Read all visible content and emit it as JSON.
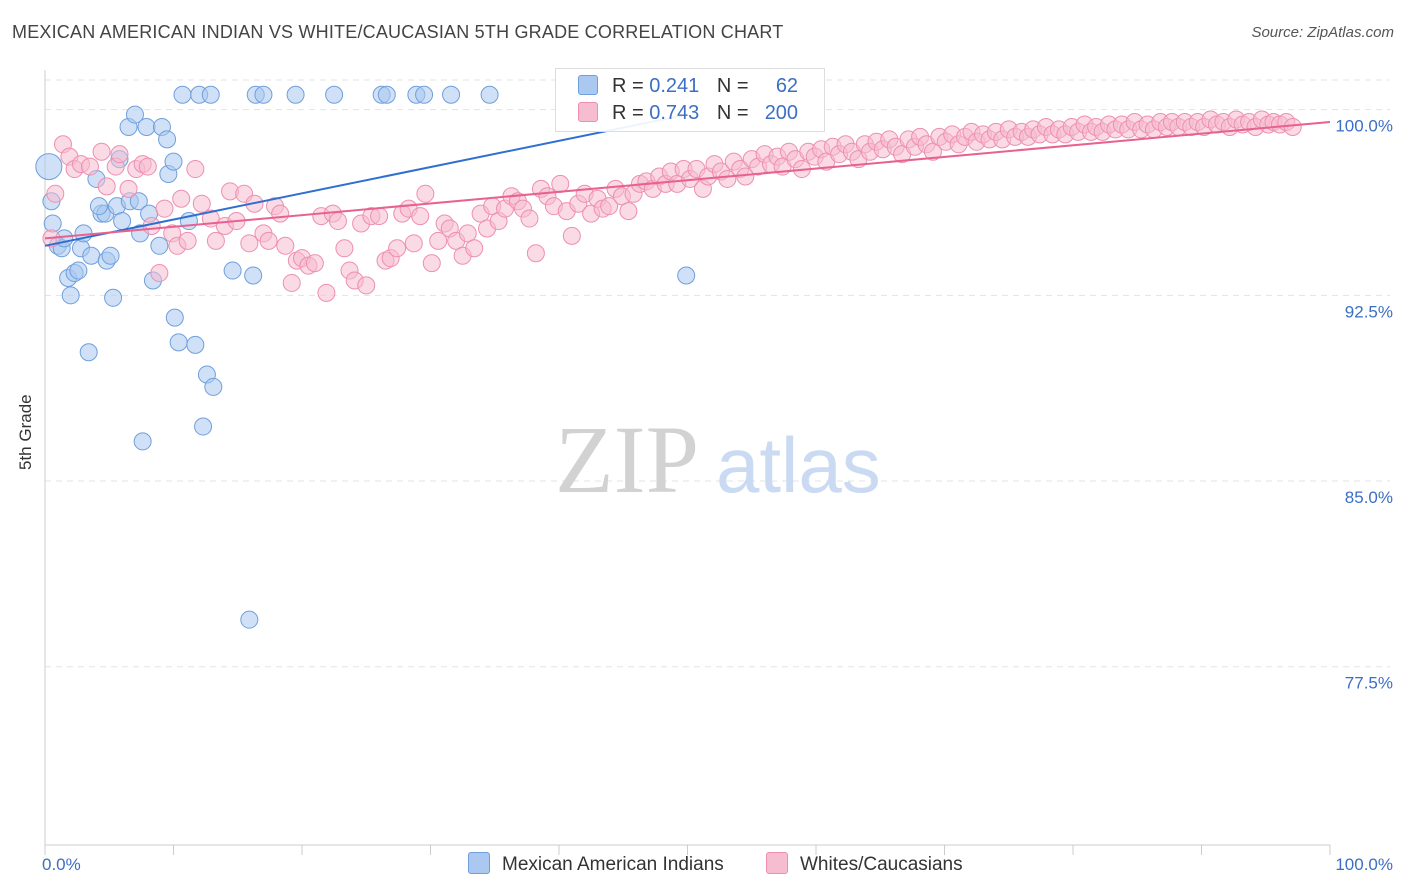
{
  "header": {
    "title": "MEXICAN AMERICAN INDIAN VS WHITE/CAUCASIAN 5TH GRADE CORRELATION CHART",
    "source": "Source: ZipAtlas.com"
  },
  "watermark": {
    "zip": "ZIP",
    "atlas": "atlas"
  },
  "colors": {
    "blue_fill": "#aac8f0",
    "blue_stroke": "#6f9fdc",
    "blue_line": "#2f6fd0",
    "pink_fill": "#f6bcd0",
    "pink_stroke": "#ee8fb0",
    "pink_line": "#e8628f",
    "tick_label": "#3b6fc4",
    "grid": "#e3e3e3"
  },
  "legend": {
    "rows": [
      {
        "r_label": "R =",
        "r_value": "0.241",
        "n_label": "N =",
        "n_value": "62"
      },
      {
        "r_label": "R =",
        "r_value": "0.743",
        "n_label": "N =",
        "n_value": "200"
      }
    ]
  },
  "bottom_legend": {
    "series1": "Mexican American Indians",
    "series2": "Whites/Caucasians"
  },
  "chart_data": {
    "type": "scatter",
    "title": "MEXICAN AMERICAN INDIAN VS WHITE/CAUCASIAN 5TH GRADE CORRELATION CHART",
    "xlabel": "",
    "ylabel": "5th Grade",
    "xlim": [
      0,
      100
    ],
    "ylim": [
      70.3,
      101.6
    ],
    "x_tick_labels": [
      "0.0%",
      "100.0%"
    ],
    "y_ticks": [
      77.5,
      85.0,
      92.5,
      100.0
    ],
    "y_tick_labels": [
      "77.5%",
      "85.0%",
      "92.5%",
      "100.0%"
    ],
    "grid": true,
    "series": [
      {
        "name": "Mexican American Indians",
        "color": "blue",
        "r": 0.241,
        "n": 62,
        "trend": {
          "x": [
            0,
            50
          ],
          "y": [
            94.5,
            99.8
          ]
        },
        "points": [
          [
            0.3,
            97.7
          ],
          [
            0.5,
            96.3
          ],
          [
            0.6,
            95.4
          ],
          [
            1.0,
            94.5
          ],
          [
            1.3,
            94.4
          ],
          [
            1.5,
            94.8
          ],
          [
            1.8,
            93.2
          ],
          [
            2.0,
            92.5
          ],
          [
            2.3,
            93.4
          ],
          [
            2.6,
            93.5
          ],
          [
            2.8,
            94.4
          ],
          [
            3.0,
            95.0
          ],
          [
            3.4,
            90.2
          ],
          [
            3.6,
            94.1
          ],
          [
            4.0,
            97.2
          ],
          [
            4.4,
            95.8
          ],
          [
            4.7,
            95.8
          ],
          [
            4.2,
            96.1
          ],
          [
            4.8,
            93.9
          ],
          [
            5.1,
            94.1
          ],
          [
            5.3,
            92.4
          ],
          [
            5.6,
            96.1
          ],
          [
            5.8,
            98.0
          ],
          [
            6.0,
            95.5
          ],
          [
            6.6,
            96.3
          ],
          [
            6.5,
            99.3
          ],
          [
            7.0,
            99.8
          ],
          [
            7.3,
            96.3
          ],
          [
            7.4,
            95.0
          ],
          [
            7.6,
            86.6
          ],
          [
            7.9,
            99.3
          ],
          [
            8.1,
            95.8
          ],
          [
            8.4,
            93.1
          ],
          [
            8.9,
            94.5
          ],
          [
            9.1,
            99.3
          ],
          [
            9.5,
            98.8
          ],
          [
            9.6,
            97.4
          ],
          [
            10.0,
            97.9
          ],
          [
            10.1,
            91.6
          ],
          [
            10.4,
            90.6
          ],
          [
            10.7,
            100.6
          ],
          [
            11.2,
            95.5
          ],
          [
            11.7,
            90.5
          ],
          [
            12.0,
            100.6
          ],
          [
            12.3,
            87.2
          ],
          [
            12.6,
            89.3
          ],
          [
            12.9,
            100.6
          ],
          [
            13.1,
            88.8
          ],
          [
            14.6,
            93.5
          ],
          [
            15.9,
            79.4
          ],
          [
            16.2,
            93.3
          ],
          [
            16.4,
            100.6
          ],
          [
            17.0,
            100.6
          ],
          [
            19.5,
            100.6
          ],
          [
            22.5,
            100.6
          ],
          [
            26.2,
            100.6
          ],
          [
            26.6,
            100.6
          ],
          [
            28.9,
            100.6
          ],
          [
            29.5,
            100.6
          ],
          [
            31.6,
            100.6
          ],
          [
            34.6,
            100.6
          ],
          [
            49.9,
            93.3
          ]
        ]
      },
      {
        "name": "Whites/Caucasians",
        "color": "pink",
        "r": 0.743,
        "n": 200,
        "trend": {
          "x": [
            0,
            100
          ],
          "y": [
            94.8,
            99.5
          ]
        },
        "points": [
          [
            0.5,
            94.8
          ],
          [
            0.8,
            96.6
          ],
          [
            1.4,
            98.6
          ],
          [
            1.9,
            98.1
          ],
          [
            2.3,
            97.6
          ],
          [
            2.8,
            97.8
          ],
          [
            3.5,
            97.7
          ],
          [
            4.4,
            98.3
          ],
          [
            4.8,
            96.9
          ],
          [
            5.5,
            97.7
          ],
          [
            5.8,
            98.2
          ],
          [
            6.5,
            96.8
          ],
          [
            7.1,
            97.6
          ],
          [
            7.6,
            97.8
          ],
          [
            8.0,
            97.7
          ],
          [
            8.3,
            95.3
          ],
          [
            8.9,
            93.4
          ],
          [
            9.3,
            96.0
          ],
          [
            9.9,
            95.0
          ],
          [
            10.3,
            94.5
          ],
          [
            10.6,
            96.4
          ],
          [
            11.1,
            94.7
          ],
          [
            11.7,
            97.6
          ],
          [
            12.2,
            96.2
          ],
          [
            12.9,
            95.6
          ],
          [
            13.3,
            94.7
          ],
          [
            14.0,
            95.3
          ],
          [
            14.4,
            96.7
          ],
          [
            14.9,
            95.5
          ],
          [
            15.5,
            96.6
          ],
          [
            15.9,
            94.6
          ],
          [
            16.3,
            96.2
          ],
          [
            17.0,
            95.0
          ],
          [
            17.4,
            94.7
          ],
          [
            17.9,
            96.1
          ],
          [
            18.3,
            95.8
          ],
          [
            18.7,
            94.5
          ],
          [
            19.2,
            93.0
          ],
          [
            19.6,
            93.9
          ],
          [
            20.0,
            94.0
          ],
          [
            20.5,
            93.7
          ],
          [
            21.0,
            93.8
          ],
          [
            21.5,
            95.7
          ],
          [
            21.9,
            92.6
          ],
          [
            22.4,
            95.8
          ],
          [
            22.8,
            95.5
          ],
          [
            23.3,
            94.4
          ],
          [
            23.7,
            93.5
          ],
          [
            24.1,
            93.1
          ],
          [
            24.6,
            95.4
          ],
          [
            25.0,
            92.9
          ],
          [
            25.4,
            95.7
          ],
          [
            26.0,
            95.7
          ],
          [
            26.5,
            93.9
          ],
          [
            26.9,
            94.0
          ],
          [
            27.4,
            94.4
          ],
          [
            27.8,
            95.8
          ],
          [
            28.3,
            96.0
          ],
          [
            28.7,
            94.6
          ],
          [
            29.2,
            95.7
          ],
          [
            29.6,
            96.6
          ],
          [
            30.1,
            93.8
          ],
          [
            30.6,
            94.7
          ],
          [
            31.1,
            95.4
          ],
          [
            31.5,
            95.2
          ],
          [
            32.0,
            94.7
          ],
          [
            32.5,
            94.1
          ],
          [
            32.9,
            95.0
          ],
          [
            33.4,
            94.4
          ],
          [
            33.9,
            95.8
          ],
          [
            34.4,
            95.2
          ],
          [
            34.8,
            96.1
          ],
          [
            35.3,
            95.5
          ],
          [
            35.8,
            96.0
          ],
          [
            36.3,
            96.5
          ],
          [
            36.8,
            96.3
          ],
          [
            37.2,
            96.0
          ],
          [
            37.7,
            95.6
          ],
          [
            38.2,
            94.2
          ],
          [
            38.6,
            96.8
          ],
          [
            39.1,
            96.5
          ],
          [
            39.6,
            96.1
          ],
          [
            40.1,
            97.0
          ],
          [
            40.6,
            95.9
          ],
          [
            41.0,
            94.9
          ],
          [
            41.5,
            96.2
          ],
          [
            42.0,
            96.6
          ],
          [
            42.5,
            95.8
          ],
          [
            43.0,
            96.4
          ],
          [
            43.4,
            96.0
          ],
          [
            43.9,
            96.1
          ],
          [
            44.4,
            96.8
          ],
          [
            44.9,
            96.5
          ],
          [
            45.4,
            95.9
          ],
          [
            45.8,
            96.6
          ],
          [
            46.3,
            97.0
          ],
          [
            46.8,
            97.1
          ],
          [
            47.3,
            96.8
          ],
          [
            47.8,
            97.3
          ],
          [
            48.3,
            97.0
          ],
          [
            48.7,
            97.5
          ],
          [
            49.2,
            97.0
          ],
          [
            49.7,
            97.6
          ],
          [
            50.2,
            97.2
          ],
          [
            50.7,
            97.6
          ],
          [
            51.2,
            96.8
          ],
          [
            51.6,
            97.3
          ],
          [
            52.1,
            97.8
          ],
          [
            52.6,
            97.5
          ],
          [
            53.1,
            97.2
          ],
          [
            53.6,
            97.9
          ],
          [
            54.1,
            97.6
          ],
          [
            54.5,
            97.3
          ],
          [
            55.0,
            98.0
          ],
          [
            55.5,
            97.7
          ],
          [
            56.0,
            98.2
          ],
          [
            56.5,
            97.8
          ],
          [
            57.0,
            98.1
          ],
          [
            57.4,
            97.7
          ],
          [
            57.9,
            98.3
          ],
          [
            58.4,
            98.0
          ],
          [
            58.9,
            97.6
          ],
          [
            59.4,
            98.3
          ],
          [
            59.9,
            98.1
          ],
          [
            60.4,
            98.4
          ],
          [
            60.8,
            97.9
          ],
          [
            61.3,
            98.5
          ],
          [
            61.8,
            98.2
          ],
          [
            62.3,
            98.6
          ],
          [
            62.8,
            98.3
          ],
          [
            63.3,
            98.0
          ],
          [
            63.8,
            98.6
          ],
          [
            64.2,
            98.3
          ],
          [
            64.7,
            98.7
          ],
          [
            65.2,
            98.4
          ],
          [
            65.7,
            98.8
          ],
          [
            66.2,
            98.5
          ],
          [
            66.7,
            98.2
          ],
          [
            67.2,
            98.8
          ],
          [
            67.7,
            98.5
          ],
          [
            68.1,
            98.9
          ],
          [
            68.6,
            98.6
          ],
          [
            69.1,
            98.3
          ],
          [
            69.6,
            98.9
          ],
          [
            70.1,
            98.7
          ],
          [
            70.6,
            99.0
          ],
          [
            71.1,
            98.6
          ],
          [
            71.6,
            98.9
          ],
          [
            72.1,
            99.1
          ],
          [
            72.5,
            98.7
          ],
          [
            73.0,
            99.0
          ],
          [
            73.5,
            98.8
          ],
          [
            74.0,
            99.1
          ],
          [
            74.5,
            98.8
          ],
          [
            75.0,
            99.2
          ],
          [
            75.5,
            98.9
          ],
          [
            76.0,
            99.1
          ],
          [
            76.5,
            98.9
          ],
          [
            76.9,
            99.2
          ],
          [
            77.4,
            99.0
          ],
          [
            77.9,
            99.3
          ],
          [
            78.4,
            99.0
          ],
          [
            78.9,
            99.2
          ],
          [
            79.4,
            99.0
          ],
          [
            79.9,
            99.3
          ],
          [
            80.4,
            99.1
          ],
          [
            80.9,
            99.4
          ],
          [
            81.4,
            99.1
          ],
          [
            81.8,
            99.3
          ],
          [
            82.3,
            99.1
          ],
          [
            82.8,
            99.4
          ],
          [
            83.3,
            99.2
          ],
          [
            83.8,
            99.4
          ],
          [
            84.3,
            99.2
          ],
          [
            84.8,
            99.5
          ],
          [
            85.3,
            99.2
          ],
          [
            85.8,
            99.4
          ],
          [
            86.3,
            99.2
          ],
          [
            86.8,
            99.5
          ],
          [
            87.3,
            99.3
          ],
          [
            87.7,
            99.5
          ],
          [
            88.2,
            99.3
          ],
          [
            88.7,
            99.5
          ],
          [
            89.2,
            99.3
          ],
          [
            89.7,
            99.5
          ],
          [
            90.2,
            99.3
          ],
          [
            90.7,
            99.6
          ],
          [
            91.2,
            99.4
          ],
          [
            91.7,
            99.5
          ],
          [
            92.2,
            99.3
          ],
          [
            92.7,
            99.6
          ],
          [
            93.2,
            99.4
          ],
          [
            93.7,
            99.5
          ],
          [
            94.2,
            99.3
          ],
          [
            94.7,
            99.6
          ],
          [
            95.2,
            99.4
          ],
          [
            95.6,
            99.5
          ],
          [
            96.1,
            99.4
          ],
          [
            96.6,
            99.5
          ],
          [
            97.1,
            99.3
          ]
        ]
      }
    ]
  }
}
